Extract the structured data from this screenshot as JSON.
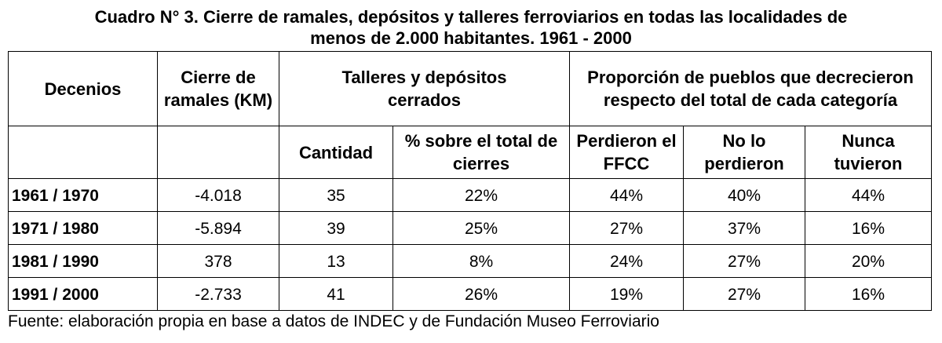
{
  "header": {
    "title_lines": [
      "Cuadro N° 3. Cierre de ramales, depósitos y talleres ferroviarios en todas las localidades de",
      "menos de 2.000 habitantes. 1961 - 2000"
    ]
  },
  "table": {
    "header_top": [
      "Decenios",
      "Cierre de ramales (KM)",
      "Talleres y depósitos cerrados",
      "Proporción de pueblos que decrecieron respecto del total de cada categoría"
    ],
    "header_sub": [
      "Cantidad",
      "% sobre el total de cierres",
      "Perdieron el FFCC",
      "No lo perdieron",
      "Nunca tuvieron"
    ],
    "rows": [
      [
        "1961 / 1970",
        "-4.018",
        "35",
        "22%",
        "44%",
        "40%",
        "44%"
      ],
      [
        "1971 / 1980",
        "-5.894",
        "39",
        "25%",
        "27%",
        "37%",
        "16%"
      ],
      [
        "1981 / 1990",
        "378",
        "13",
        "8%",
        "24%",
        "27%",
        "20%"
      ],
      [
        "1991 / 2000",
        "-2.733",
        "41",
        "26%",
        "19%",
        "27%",
        "16%"
      ]
    ]
  },
  "footer": {
    "source": "Fuente: elaboración propia en base a datos de INDEC y de Fundación Museo Ferroviario"
  }
}
